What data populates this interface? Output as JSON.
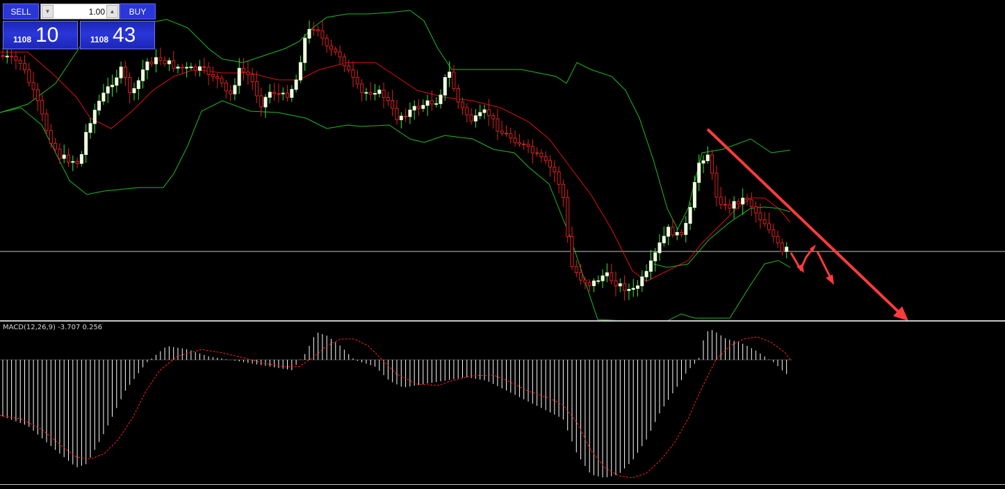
{
  "trade_panel": {
    "sell_label": "SELL",
    "buy_label": "BUY",
    "lot_value": "1.00",
    "sell_price_small": "1108",
    "sell_price_big": "10",
    "buy_price_small": "1108",
    "buy_price_big": "43",
    "spin_down_icon": "triangle-down-icon",
    "spin_up_icon": "triangle-up-icon"
  },
  "indicator": {
    "macd_label": "MACD(12,26,9) -3.707 0.256"
  },
  "colors": {
    "background": "#000000",
    "bull_candle": "#f0ffe0",
    "bear_candle": "#e02020",
    "wick": "#33ee33",
    "bollinger": "#22bb22",
    "middle_band": "#e01010",
    "annotation_arrow": "#ff3b3b",
    "macd_histogram": "#ffffff",
    "macd_signal": "#ff2020",
    "button_blue": "#2a36d8"
  }
}
